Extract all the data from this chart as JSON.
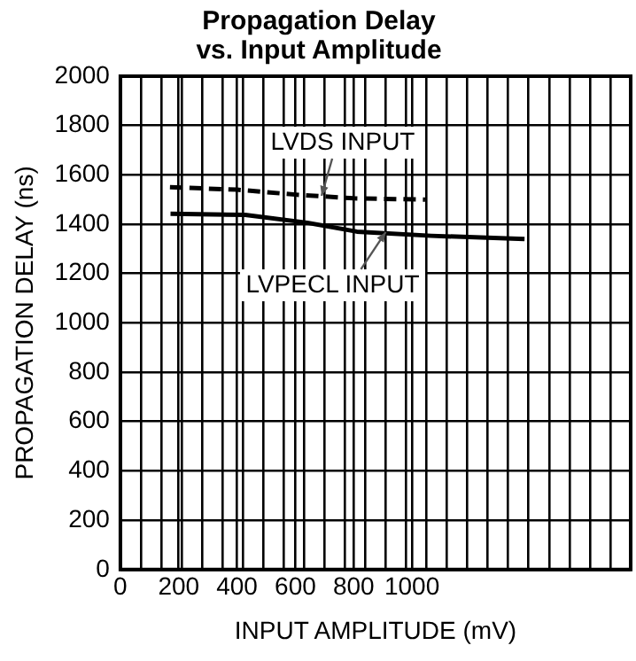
{
  "chart_data": {
    "type": "line",
    "title": "Propagation Delay\nvs. Input Amplitude",
    "xlabel": "INPUT AMPLITUDE (mV)",
    "ylabel": "PROPAGATION DELAY (ns)",
    "series": [
      {
        "color": "#000000",
        "line_style": "dashed",
        "x": [
          170,
          400,
          600,
          800,
          1045
        ],
        "values": [
          1550,
          1540,
          1520,
          1505,
          1500
        ]
      },
      {
        "color": "#000000",
        "line_style": "solid",
        "x": [
          172,
          428,
          641,
          811,
          1066,
          1386
        ],
        "values": [
          1442,
          1438,
          1406,
          1370,
          1353,
          1340
        ]
      }
    ],
    "annotations": [
      {
        "text": "LVDS INPUT",
        "x": 690,
        "y": 1515
      },
      {
        "text": "LVPECL INPUT",
        "x": 910,
        "y": 1368
      }
    ],
    "xlim": [
      0,
      1750
    ],
    "xticks": [
      0,
      {
        "value": 70,
        "label": null
      },
      {
        "value": 140,
        "label": null
      },
      200,
      {
        "value": 210,
        "label": null
      },
      {
        "value": 280,
        "label": null
      },
      {
        "value": 350,
        "label": null
      },
      400,
      {
        "value": 420,
        "label": null
      },
      {
        "value": 490,
        "label": null
      },
      {
        "value": 560,
        "label": null
      },
      600,
      {
        "value": 630,
        "label": null
      },
      {
        "value": 700,
        "label": null
      },
      {
        "value": 770,
        "label": null
      },
      800,
      {
        "value": 840,
        "label": null
      },
      {
        "value": 910,
        "label": null
      },
      {
        "value": 980,
        "label": null
      },
      1000,
      {
        "value": 1050,
        "label": null
      },
      {
        "value": 1120,
        "label": null
      },
      {
        "value": 1190,
        "label": null
      },
      {
        "value": 1260,
        "label": null
      },
      {
        "value": 1330,
        "label": null
      },
      {
        "value": 1400,
        "label": null
      },
      {
        "value": 1470,
        "label": null
      },
      {
        "value": 1540,
        "label": null
      },
      {
        "value": 1610,
        "label": null
      },
      {
        "value": 1680,
        "label": null
      },
      {
        "value": 1750,
        "label": null
      }
    ],
    "ylim": [
      0,
      2000
    ],
    "yticks": [
      0,
      200,
      400,
      600,
      800,
      1000,
      1200,
      1400,
      1600,
      1800,
      2000
    ],
    "grid": true,
    "legend": false,
    "marker": "none"
  }
}
